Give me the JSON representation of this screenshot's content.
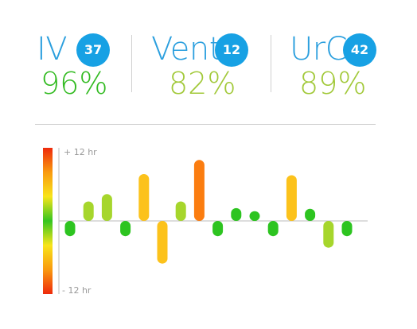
{
  "metrics": [
    {
      "label": "IV",
      "count": "37",
      "percent": "96%",
      "percent_color": "#33bb22"
    },
    {
      "label": "Vent",
      "count": "12",
      "percent": "82%",
      "percent_color": "#a2c93a"
    },
    {
      "label": "UrC",
      "count": "42",
      "percent": "89%",
      "percent_color": "#a2c93a"
    }
  ],
  "colors": {
    "label": "#2b9fde",
    "badge": "#17a1e4",
    "green": "#2dc420",
    "lime": "#a6d62c",
    "yellow": "#fcc21b",
    "orange": "#fb7d10"
  },
  "chart_data": {
    "type": "bar",
    "title": "",
    "xlabel": "",
    "ylabel": "",
    "ylim": [
      -12,
      12
    ],
    "yticks": [
      "+ 12 hr",
      "- 12 hr"
    ],
    "gradient": [
      "#ee2a0c",
      "#f99a0f",
      "#f8e41a",
      "#35c520",
      "#f8e41a",
      "#f99a0f",
      "#ee2a0c"
    ],
    "values": [
      -2.5,
      3.2,
      4.4,
      -2.5,
      7.7,
      -7.0,
      3.2,
      10.0,
      -2.5,
      2.1,
      1.6,
      -2.5,
      7.5,
      2.0,
      -4.4,
      -2.5
    ],
    "bar_colors": [
      "green",
      "lime",
      "lime",
      "green",
      "yellow",
      "yellow",
      "lime",
      "orange",
      "green",
      "green",
      "green",
      "green",
      "yellow",
      "green",
      "lime",
      "green"
    ]
  }
}
